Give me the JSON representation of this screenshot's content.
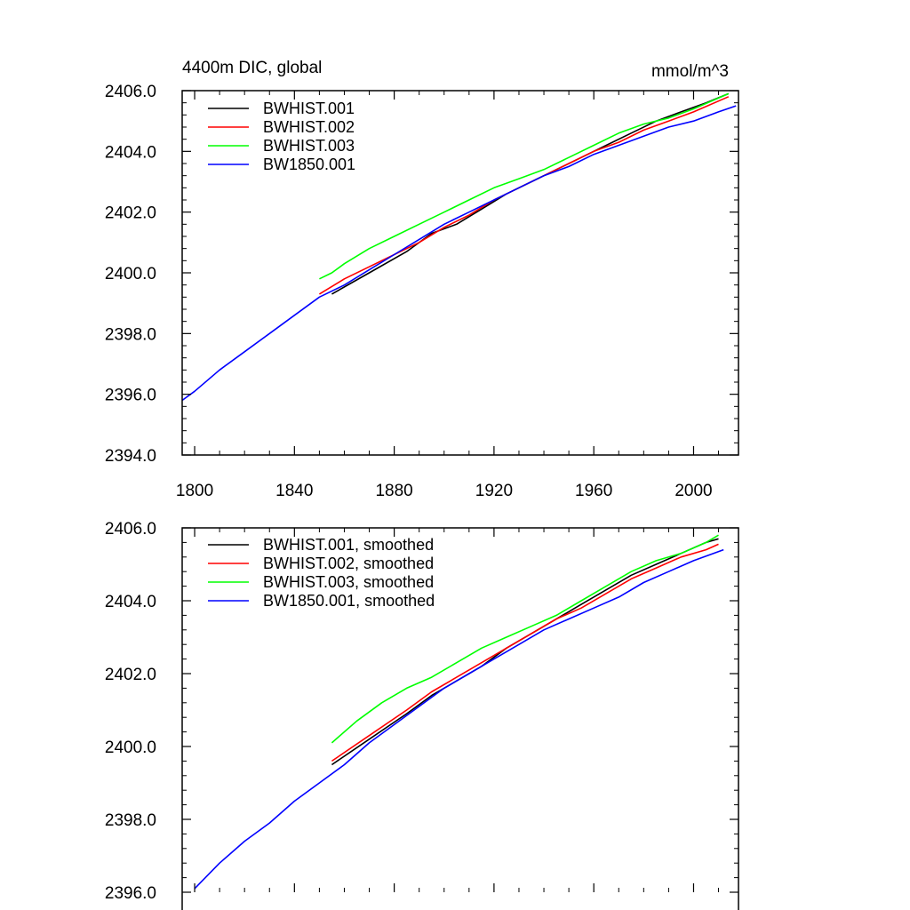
{
  "chart_data": [
    {
      "type": "line",
      "title": "4400m DIC, global",
      "units": "mmol/m^3",
      "xlabel": "",
      "ylabel": "",
      "xlim": [
        1795,
        2018
      ],
      "ylim": [
        2394.0,
        2406.0
      ],
      "x_ticks": [
        1800,
        1840,
        1880,
        1920,
        1960,
        2000
      ],
      "x_tick_labels": [
        "1800",
        "1840",
        "1880",
        "1920",
        "1960",
        "2000"
      ],
      "y_ticks": [
        2394.0,
        2396.0,
        2398.0,
        2400.0,
        2402.0,
        2404.0,
        2406.0
      ],
      "y_tick_labels": [
        "2394.0",
        "2396.0",
        "2398.0",
        "2400.0",
        "2402.0",
        "2404.0",
        "2406.0"
      ],
      "grid": false,
      "legend_position": "top-left",
      "series": [
        {
          "name": "BWHIST.001",
          "color": "#000000",
          "points": [
            [
              1855,
              2399.3
            ],
            [
              1870,
              2400.0
            ],
            [
              1885,
              2400.7
            ],
            [
              1895,
              2401.3
            ],
            [
              1905,
              2401.6
            ],
            [
              1915,
              2402.1
            ],
            [
              1925,
              2402.6
            ],
            [
              1935,
              2403.0
            ],
            [
              1945,
              2403.4
            ],
            [
              1955,
              2403.8
            ],
            [
              1965,
              2404.2
            ],
            [
              1975,
              2404.6
            ],
            [
              1985,
              2405.0
            ],
            [
              1995,
              2405.3
            ],
            [
              2005,
              2405.6
            ],
            [
              2014,
              2405.9
            ]
          ]
        },
        {
          "name": "BWHIST.002",
          "color": "#ff0000",
          "points": [
            [
              1850,
              2399.3
            ],
            [
              1860,
              2399.8
            ],
            [
              1870,
              2400.2
            ],
            [
              1880,
              2400.6
            ],
            [
              1890,
              2401.0
            ],
            [
              1900,
              2401.5
            ],
            [
              1910,
              2401.9
            ],
            [
              1920,
              2402.4
            ],
            [
              1930,
              2402.8
            ],
            [
              1940,
              2403.2
            ],
            [
              1950,
              2403.6
            ],
            [
              1960,
              2404.0
            ],
            [
              1970,
              2404.3
            ],
            [
              1980,
              2404.7
            ],
            [
              1990,
              2405.0
            ],
            [
              2000,
              2405.3
            ],
            [
              2014,
              2405.8
            ]
          ]
        },
        {
          "name": "BWHIST.003",
          "color": "#00ff00",
          "points": [
            [
              1850,
              2399.8
            ],
            [
              1855,
              2400.0
            ],
            [
              1860,
              2400.3
            ],
            [
              1870,
              2400.8
            ],
            [
              1880,
              2401.2
            ],
            [
              1890,
              2401.6
            ],
            [
              1900,
              2402.0
            ],
            [
              1910,
              2402.4
            ],
            [
              1920,
              2402.8
            ],
            [
              1930,
              2403.1
            ],
            [
              1940,
              2403.4
            ],
            [
              1950,
              2403.8
            ],
            [
              1960,
              2404.2
            ],
            [
              1970,
              2404.6
            ],
            [
              1980,
              2404.9
            ],
            [
              1990,
              2405.1
            ],
            [
              2000,
              2405.4
            ],
            [
              2014,
              2405.9
            ]
          ]
        },
        {
          "name": "BW1850.001",
          "color": "#0000ff",
          "points": [
            [
              1795,
              2395.8
            ],
            [
              1800,
              2396.1
            ],
            [
              1810,
              2396.8
            ],
            [
              1820,
              2397.4
            ],
            [
              1830,
              2398.0
            ],
            [
              1840,
              2398.6
            ],
            [
              1850,
              2399.2
            ],
            [
              1860,
              2399.6
            ],
            [
              1870,
              2400.1
            ],
            [
              1880,
              2400.6
            ],
            [
              1890,
              2401.1
            ],
            [
              1900,
              2401.6
            ],
            [
              1910,
              2402.0
            ],
            [
              1920,
              2402.4
            ],
            [
              1930,
              2402.8
            ],
            [
              1940,
              2403.2
            ],
            [
              1950,
              2403.5
            ],
            [
              1960,
              2403.9
            ],
            [
              1970,
              2404.2
            ],
            [
              1980,
              2404.5
            ],
            [
              1990,
              2404.8
            ],
            [
              2000,
              2405.0
            ],
            [
              2010,
              2405.3
            ],
            [
              2017,
              2405.5
            ]
          ]
        }
      ]
    },
    {
      "type": "line",
      "title": "",
      "xlabel": "",
      "ylabel": "",
      "xlim": [
        1795,
        2018
      ],
      "ylim": [
        2396.0,
        2406.0
      ],
      "x_ticks": [
        1800,
        1840,
        1880,
        1920,
        1960,
        2000
      ],
      "y_ticks": [
        2396.0,
        2398.0,
        2400.0,
        2402.0,
        2404.0,
        2406.0
      ],
      "y_tick_labels": [
        "2396.0",
        "2398.0",
        "2400.0",
        "2402.0",
        "2404.0",
        "2406.0"
      ],
      "grid": false,
      "legend_position": "top-left",
      "series": [
        {
          "name": "BWHIST.001, smoothed",
          "color": "#000000",
          "points": [
            [
              1855,
              2399.5
            ],
            [
              1870,
              2400.2
            ],
            [
              1885,
              2400.9
            ],
            [
              1895,
              2401.4
            ],
            [
              1905,
              2401.8
            ],
            [
              1915,
              2402.2
            ],
            [
              1925,
              2402.7
            ],
            [
              1935,
              2403.1
            ],
            [
              1945,
              2403.5
            ],
            [
              1955,
              2403.9
            ],
            [
              1965,
              2404.3
            ],
            [
              1975,
              2404.7
            ],
            [
              1985,
              2405.0
            ],
            [
              1995,
              2405.3
            ],
            [
              2005,
              2405.6
            ],
            [
              2010,
              2405.7
            ]
          ]
        },
        {
          "name": "BWHIST.002, smoothed",
          "color": "#ff0000",
          "points": [
            [
              1855,
              2399.6
            ],
            [
              1870,
              2400.3
            ],
            [
              1885,
              2401.0
            ],
            [
              1895,
              2401.5
            ],
            [
              1905,
              2401.9
            ],
            [
              1915,
              2402.3
            ],
            [
              1925,
              2402.7
            ],
            [
              1935,
              2403.1
            ],
            [
              1945,
              2403.5
            ],
            [
              1955,
              2403.8
            ],
            [
              1965,
              2404.2
            ],
            [
              1975,
              2404.6
            ],
            [
              1985,
              2404.9
            ],
            [
              1995,
              2405.2
            ],
            [
              2005,
              2405.4
            ],
            [
              2010,
              2405.55
            ]
          ]
        },
        {
          "name": "BWHIST.003, smoothed",
          "color": "#00ff00",
          "points": [
            [
              1855,
              2400.1
            ],
            [
              1865,
              2400.7
            ],
            [
              1875,
              2401.2
            ],
            [
              1885,
              2401.6
            ],
            [
              1895,
              2401.9
            ],
            [
              1905,
              2402.3
            ],
            [
              1915,
              2402.7
            ],
            [
              1925,
              2403.0
            ],
            [
              1935,
              2403.3
            ],
            [
              1945,
              2403.6
            ],
            [
              1955,
              2404.0
            ],
            [
              1965,
              2404.4
            ],
            [
              1975,
              2404.8
            ],
            [
              1985,
              2405.1
            ],
            [
              1995,
              2405.3
            ],
            [
              2005,
              2405.6
            ],
            [
              2010,
              2405.8
            ]
          ]
        },
        {
          "name": "BW1850.001, smoothed",
          "color": "#0000ff",
          "points": [
            [
              1800,
              2396.1
            ],
            [
              1810,
              2396.8
            ],
            [
              1820,
              2397.4
            ],
            [
              1830,
              2397.9
            ],
            [
              1840,
              2398.5
            ],
            [
              1850,
              2399.0
            ],
            [
              1860,
              2399.5
            ],
            [
              1870,
              2400.1
            ],
            [
              1880,
              2400.6
            ],
            [
              1890,
              2401.1
            ],
            [
              1900,
              2401.6
            ],
            [
              1910,
              2402.0
            ],
            [
              1920,
              2402.4
            ],
            [
              1930,
              2402.8
            ],
            [
              1940,
              2403.2
            ],
            [
              1950,
              2403.5
            ],
            [
              1960,
              2403.8
            ],
            [
              1970,
              2404.1
            ],
            [
              1980,
              2404.5
            ],
            [
              1990,
              2404.8
            ],
            [
              2000,
              2405.1
            ],
            [
              2012,
              2405.4
            ]
          ]
        }
      ]
    }
  ]
}
